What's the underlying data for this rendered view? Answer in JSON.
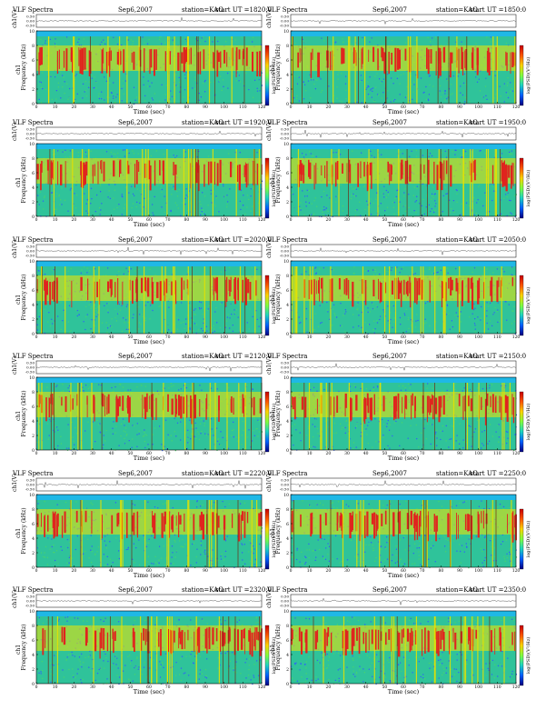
{
  "labels": {
    "title": "VLF Spectra",
    "date": "Sep6,2007",
    "station": "station=KAG",
    "start_prefix": "start  UT  =",
    "xlabel": "Time  (sec)",
    "ylabel_ch1": "Frequency  (kHz)",
    "ylabel_ch1_tag": "ch1",
    "wave_label": "ch1(V)",
    "colorbar_label": "log(PSD)(V²/Hz)"
  },
  "axes": {
    "time_ticks": [
      "0",
      "10",
      "20",
      "30",
      "40",
      "50",
      "60",
      "70",
      "80",
      "90",
      "100",
      "110",
      "120"
    ],
    "freq_ticks": [
      "0",
      "2",
      "4",
      "6",
      "8",
      "10"
    ],
    "wave_ticks": [
      "0.50",
      "0.00",
      "-0.50"
    ],
    "colorbar_ticks": [
      "",
      "",
      ""
    ],
    "time_range": [
      0,
      120
    ],
    "freq_range": [
      0,
      10
    ],
    "wave_range": [
      -0.5,
      0.5
    ]
  },
  "colors": {
    "spectrogram_background": "#2fc39a",
    "low_level": "#2f5dff",
    "mid_level": "#f6e600",
    "high_level": "#e0251e",
    "colorbar_stops": [
      "#c70000",
      "#ff5a00",
      "#ffd400",
      "#80ff40",
      "#1ed7c0",
      "#0060ff",
      "#000080"
    ]
  },
  "chart_data": [
    {
      "type": "heatmap",
      "start_ut": "1820:0",
      "title": "VLF Spectra",
      "date": "Sep6,2007",
      "station": "KAG",
      "xlabel": "Time (sec)",
      "ylabel": "Frequency (kHz)",
      "xlim": [
        0,
        120
      ],
      "ylim": [
        0,
        10
      ]
    },
    {
      "type": "heatmap",
      "start_ut": "1850:0",
      "title": "VLF Spectra",
      "date": "Sep6,2007",
      "station": "KAG",
      "xlabel": "Time (sec)",
      "ylabel": "Frequency (kHz)",
      "xlim": [
        0,
        120
      ],
      "ylim": [
        0,
        10
      ]
    },
    {
      "type": "heatmap",
      "start_ut": "1920:0",
      "title": "VLF Spectra",
      "date": "Sep6,2007",
      "station": "KAG",
      "xlabel": "Time (sec)",
      "ylabel": "Frequency (kHz)",
      "xlim": [
        0,
        120
      ],
      "ylim": [
        0,
        10
      ]
    },
    {
      "type": "heatmap",
      "start_ut": "1950:0",
      "title": "VLF Spectra",
      "date": "Sep6,2007",
      "station": "KAG",
      "xlabel": "Time (sec)",
      "ylabel": "Frequency (kHz)",
      "xlim": [
        0,
        120
      ],
      "ylim": [
        0,
        10
      ]
    },
    {
      "type": "heatmap",
      "start_ut": "2020:0",
      "title": "VLF Spectra",
      "date": "Sep6,2007",
      "station": "KAG",
      "xlabel": "Time (sec)",
      "ylabel": "Frequency (kHz)",
      "xlim": [
        0,
        120
      ],
      "ylim": [
        0,
        10
      ]
    },
    {
      "type": "heatmap",
      "start_ut": "2050:0",
      "title": "VLF Spectra",
      "date": "Sep6,2007",
      "station": "KAG",
      "xlabel": "Time (sec)",
      "ylabel": "Frequency (kHz)",
      "xlim": [
        0,
        120
      ],
      "ylim": [
        0,
        10
      ]
    },
    {
      "type": "heatmap",
      "start_ut": "2120:0",
      "title": "VLF Spectra",
      "date": "Sep6,2007",
      "station": "KAG",
      "xlabel": "Time (sec)",
      "ylabel": "Frequency (kHz)",
      "xlim": [
        0,
        120
      ],
      "ylim": [
        0,
        10
      ]
    },
    {
      "type": "heatmap",
      "start_ut": "2150:0",
      "title": "VLF Spectra",
      "date": "Sep6,2007",
      "station": "KAG",
      "xlabel": "Time (sec)",
      "ylabel": "Frequency (kHz)",
      "xlim": [
        0,
        120
      ],
      "ylim": [
        0,
        10
      ]
    },
    {
      "type": "heatmap",
      "start_ut": "2220:0",
      "title": "VLF Spectra",
      "date": "Sep6,2007",
      "station": "KAG",
      "xlabel": "Time (sec)",
      "ylabel": "Frequency (kHz)",
      "xlim": [
        0,
        120
      ],
      "ylim": [
        0,
        10
      ]
    },
    {
      "type": "heatmap",
      "start_ut": "2250:0",
      "title": "VLF Spectra",
      "date": "Sep6,2007",
      "station": "KAG",
      "xlabel": "Time (sec)",
      "ylabel": "Frequency (kHz)",
      "xlim": [
        0,
        120
      ],
      "ylim": [
        0,
        10
      ]
    },
    {
      "type": "heatmap",
      "start_ut": "2320:0",
      "title": "VLF Spectra",
      "date": "Sep6,2007",
      "station": "KAG",
      "xlabel": "Time (sec)",
      "ylabel": "Frequency (kHz)",
      "xlim": [
        0,
        120
      ],
      "ylim": [
        0,
        10
      ]
    },
    {
      "type": "heatmap",
      "start_ut": "2350:0",
      "title": "VLF Spectra",
      "date": "Sep6,2007",
      "station": "KAG",
      "xlabel": "Time (sec)",
      "ylabel": "Frequency (kHz)",
      "xlim": [
        0,
        120
      ],
      "ylim": [
        0,
        10
      ]
    }
  ]
}
